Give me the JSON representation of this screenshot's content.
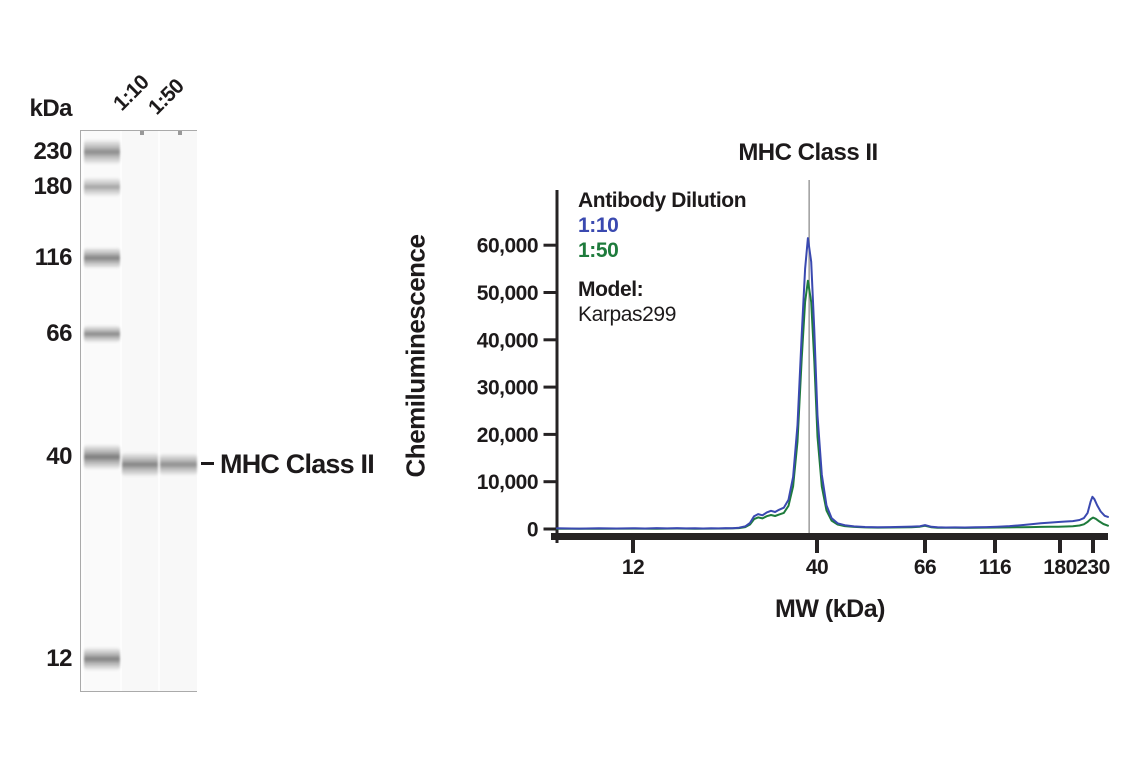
{
  "blot": {
    "kda_label": "kDa",
    "lanes": [
      "1:10",
      "1:50"
    ],
    "ladder_kda": [
      "230",
      "180",
      "116",
      "66",
      "40",
      "12"
    ],
    "band_annotation": "MHC Class II",
    "sample_band_approx_kda": 38
  },
  "chart_data": {
    "type": "line",
    "title": "MHC Class II",
    "xlabel": "MW (kDa)",
    "ylabel": "Chemiluminescence",
    "x_scale": "log-like capillary MW scale",
    "xlim": [
      8,
      252
    ],
    "ylim": [
      0,
      71000
    ],
    "grid": false,
    "x_ticks": [
      12,
      40,
      66,
      116,
      180,
      230
    ],
    "y_ticks": [
      0,
      10000,
      20000,
      30000,
      40000,
      50000,
      60000
    ],
    "y_tick_labels": [
      "0",
      "10,000",
      "20,000",
      "30,000",
      "40,000",
      "50,000",
      "60,000"
    ],
    "annotation_line_x": 38,
    "annotation_line_color": "#a3a3a3",
    "axis_color": "#262324",
    "legend": {
      "title": "Antibody Dilution",
      "entries": [
        {
          "label": "1:10",
          "color": "#3A49B0"
        },
        {
          "label": "1:50",
          "color": "#1E7B3C"
        }
      ],
      "model_label": "Model:",
      "model_value": "Karpas299",
      "position": "upper-left"
    },
    "series": [
      {
        "name": "1:50",
        "color": "#1E7B3C",
        "peak": {
          "x": 38,
          "y": 52500
        },
        "points": [
          [
            8,
            70
          ],
          [
            10,
            50
          ],
          [
            12,
            90
          ],
          [
            14,
            60
          ],
          [
            16,
            100
          ],
          [
            18,
            70
          ],
          [
            20,
            90
          ],
          [
            22,
            110
          ],
          [
            24,
            200
          ],
          [
            25,
            400
          ],
          [
            25.8,
            950
          ],
          [
            26.5,
            2100
          ],
          [
            27.2,
            2450
          ],
          [
            28,
            2250
          ],
          [
            28.8,
            2700
          ],
          [
            29.6,
            2950
          ],
          [
            30.4,
            2750
          ],
          [
            31.2,
            3050
          ],
          [
            32.2,
            3400
          ],
          [
            33.2,
            4900
          ],
          [
            34.2,
            9000
          ],
          [
            35.2,
            18500
          ],
          [
            36.2,
            36000
          ],
          [
            37,
            48000
          ],
          [
            37.7,
            52500
          ],
          [
            38.5,
            48000
          ],
          [
            39.3,
            35500
          ],
          [
            40.1,
            19500
          ],
          [
            40.9,
            9000
          ],
          [
            41.8,
            3900
          ],
          [
            42.8,
            1750
          ],
          [
            44,
            950
          ],
          [
            45.5,
            620
          ],
          [
            47.5,
            440
          ],
          [
            50,
            330
          ],
          [
            53,
            290
          ],
          [
            56,
            310
          ],
          [
            59,
            340
          ],
          [
            62,
            390
          ],
          [
            64.5,
            480
          ],
          [
            66,
            680
          ],
          [
            67.5,
            540
          ],
          [
            69.5,
            350
          ],
          [
            73,
            280
          ],
          [
            78,
            250
          ],
          [
            84,
            250
          ],
          [
            91,
            240
          ],
          [
            99,
            270
          ],
          [
            108,
            290
          ],
          [
            118,
            310
          ],
          [
            128,
            340
          ],
          [
            138,
            380
          ],
          [
            148,
            410
          ],
          [
            158,
            440
          ],
          [
            168,
            460
          ],
          [
            178,
            490
          ],
          [
            188,
            530
          ],
          [
            198,
            600
          ],
          [
            208,
            750
          ],
          [
            215,
            1000
          ],
          [
            221,
            1500
          ],
          [
            226,
            2100
          ],
          [
            230,
            2400
          ],
          [
            234,
            2150
          ],
          [
            239,
            1600
          ],
          [
            245,
            1050
          ],
          [
            252,
            700
          ]
        ]
      },
      {
        "name": "1:10",
        "color": "#3A49B0",
        "peak": {
          "x": 38,
          "y": 61500
        },
        "points": [
          [
            8,
            150
          ],
          [
            9,
            90
          ],
          [
            10,
            170
          ],
          [
            11,
            110
          ],
          [
            12,
            160
          ],
          [
            13,
            100
          ],
          [
            14,
            190
          ],
          [
            15,
            120
          ],
          [
            16,
            180
          ],
          [
            17,
            120
          ],
          [
            18,
            170
          ],
          [
            19,
            110
          ],
          [
            20,
            160
          ],
          [
            21,
            130
          ],
          [
            22,
            190
          ],
          [
            23,
            160
          ],
          [
            24,
            280
          ],
          [
            25,
            550
          ],
          [
            25.8,
            1300
          ],
          [
            26.5,
            2700
          ],
          [
            27.2,
            3150
          ],
          [
            28,
            2900
          ],
          [
            28.8,
            3500
          ],
          [
            29.6,
            3850
          ],
          [
            30.4,
            3600
          ],
          [
            31.2,
            4050
          ],
          [
            32.2,
            4500
          ],
          [
            33.2,
            6200
          ],
          [
            34.2,
            11000
          ],
          [
            35.2,
            22000
          ],
          [
            36.2,
            41000
          ],
          [
            37,
            55000
          ],
          [
            37.7,
            61500
          ],
          [
            38.5,
            56500
          ],
          [
            39.3,
            42000
          ],
          [
            40.1,
            24000
          ],
          [
            40.9,
            11500
          ],
          [
            41.8,
            5000
          ],
          [
            42.8,
            2300
          ],
          [
            44,
            1200
          ],
          [
            45.5,
            800
          ],
          [
            47.5,
            560
          ],
          [
            50,
            430
          ],
          [
            53,
            380
          ],
          [
            56,
            400
          ],
          [
            59,
            440
          ],
          [
            62,
            500
          ],
          [
            64.5,
            600
          ],
          [
            66,
            820
          ],
          [
            67.5,
            680
          ],
          [
            69.5,
            460
          ],
          [
            73,
            370
          ],
          [
            78,
            320
          ],
          [
            84,
            330
          ],
          [
            91,
            310
          ],
          [
            99,
            360
          ],
          [
            108,
            400
          ],
          [
            118,
            480
          ],
          [
            128,
            620
          ],
          [
            138,
            800
          ],
          [
            148,
            1000
          ],
          [
            158,
            1200
          ],
          [
            168,
            1350
          ],
          [
            178,
            1480
          ],
          [
            188,
            1580
          ],
          [
            198,
            1680
          ],
          [
            208,
            1900
          ],
          [
            215,
            2300
          ],
          [
            221,
            3400
          ],
          [
            226,
            5800
          ],
          [
            229,
            6800
          ],
          [
            232,
            6300
          ],
          [
            236,
            5000
          ],
          [
            241,
            3700
          ],
          [
            247,
            2800
          ],
          [
            252,
            2550
          ]
        ]
      }
    ]
  }
}
